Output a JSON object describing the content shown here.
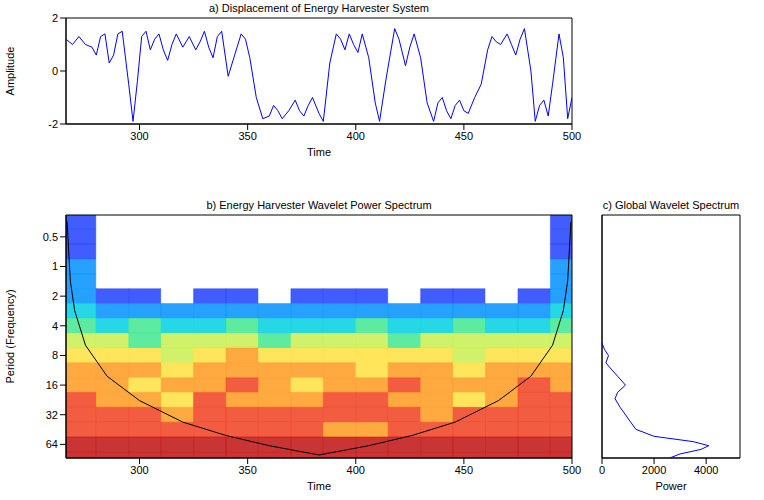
{
  "chart_data": [
    {
      "type": "line",
      "title": "a) Displacement of Energy Harvester System",
      "x_label": "Time",
      "y_label": "Amplitude",
      "x": [
        266,
        269,
        272,
        275,
        278,
        280,
        282,
        284,
        286,
        288,
        290,
        292,
        295,
        297,
        299,
        301,
        303,
        305,
        307,
        309,
        311,
        313,
        315,
        317,
        320,
        323,
        326,
        328,
        330,
        332,
        334,
        336,
        338,
        341,
        344,
        347,
        349,
        351,
        354,
        357,
        360,
        362,
        364,
        366,
        369,
        372,
        374,
        376,
        378,
        380,
        383,
        385,
        388,
        391,
        393,
        395,
        397,
        399,
        401,
        403,
        406,
        409,
        411,
        414,
        418,
        420,
        423,
        425,
        427,
        430,
        433,
        436,
        438,
        440,
        442,
        444,
        446,
        448,
        450,
        452,
        455,
        458,
        461,
        463,
        465,
        467,
        470,
        472,
        474,
        476,
        478,
        481,
        483,
        485,
        487,
        489,
        491,
        494,
        496,
        498,
        500
      ],
      "values": [
        1.2,
        1.0,
        1.3,
        1.0,
        0.9,
        0.6,
        1.3,
        1.4,
        0.3,
        0.6,
        1.4,
        1.5,
        -0.5,
        -1.9,
        -0.4,
        1.3,
        1.5,
        0.8,
        1.2,
        1.4,
        0.8,
        0.4,
        1.0,
        1.4,
        0.9,
        1.3,
        0.8,
        1.1,
        1.5,
        0.9,
        0.5,
        1.3,
        1.5,
        -0.2,
        0.6,
        1.4,
        1.2,
        0.5,
        -1.0,
        -1.8,
        -1.7,
        -1.3,
        -1.5,
        -1.8,
        -1.5,
        -1.1,
        -1.5,
        -1.7,
        -1.3,
        -1.0,
        -1.6,
        -1.9,
        0.3,
        1.4,
        1.2,
        0.8,
        1.4,
        1.0,
        0.7,
        1.4,
        0.5,
        -1.2,
        -1.9,
        -0.3,
        1.6,
        1.2,
        0.2,
        0.9,
        1.4,
        0.5,
        -1.2,
        -1.9,
        -1.2,
        -1.0,
        -1.5,
        -1.8,
        -1.3,
        -1.1,
        -1.5,
        -1.6,
        -1.0,
        -0.5,
        0.8,
        1.3,
        1.1,
        1.0,
        1.4,
        1.0,
        0.6,
        1.2,
        1.6,
        0.0,
        -1.9,
        -1.3,
        -1.1,
        -1.7,
        -0.5,
        1.4,
        0.5,
        -1.8,
        -1.0
      ],
      "color": "#0000ff",
      "xlim": [
        266,
        500
      ],
      "ylim": [
        -2,
        2
      ],
      "xticks": [
        300,
        350,
        400,
        450,
        500
      ],
      "yticks": [
        -2,
        0,
        2
      ]
    },
    {
      "type": "heatmap",
      "title": "b) Energy Harvester Wavelet Power Spectrum",
      "x_label": "Time",
      "y_label": "Period (Frequency)",
      "x_edges": [
        266,
        280,
        295,
        310,
        325,
        340,
        355,
        370,
        385,
        400,
        415,
        430,
        445,
        460,
        475,
        490,
        500
      ],
      "y_edges": [
        0.3,
        0.42,
        0.59,
        0.84,
        1.19,
        1.68,
        2.38,
        3.36,
        4.76,
        6.73,
        9.51,
        13.5,
        19,
        26.9,
        38.1,
        53.8,
        76.1,
        88
      ],
      "cells": [
        [
          1,
          0,
          0,
          0,
          0,
          0,
          0,
          0,
          0,
          0,
          0,
          0,
          0,
          0,
          0,
          1
        ],
        [
          1,
          0,
          0,
          0,
          0,
          0,
          0,
          0,
          0,
          0,
          0,
          0,
          0,
          0,
          0,
          1
        ],
        [
          1,
          0,
          0,
          0,
          0,
          0,
          0,
          0,
          0,
          0,
          0,
          0,
          0,
          0,
          0,
          1
        ],
        [
          2,
          0,
          0,
          0,
          0,
          0,
          0,
          0,
          0,
          0,
          0,
          0,
          0,
          0,
          0,
          2
        ],
        [
          2,
          0,
          0,
          0,
          0,
          0,
          0,
          0,
          0,
          0,
          0,
          0,
          0,
          0,
          0,
          2
        ],
        [
          2,
          1,
          1,
          0,
          1,
          1,
          0,
          1,
          1,
          1,
          0,
          1,
          1,
          0,
          1,
          2
        ],
        [
          3,
          2,
          2,
          2,
          2,
          2,
          2,
          2,
          2,
          2,
          2,
          2,
          2,
          2,
          2,
          3
        ],
        [
          4,
          3,
          4,
          3,
          3,
          4,
          3,
          3,
          3,
          4,
          3,
          3,
          4,
          3,
          3,
          4
        ],
        [
          5,
          5,
          4,
          5,
          5,
          5,
          4,
          5,
          5,
          5,
          4,
          5,
          5,
          5,
          5,
          5
        ],
        [
          6,
          6,
          6,
          5,
          6,
          7,
          6,
          6,
          6,
          6,
          6,
          6,
          5,
          6,
          6,
          6
        ],
        [
          7,
          7,
          7,
          6,
          7,
          7,
          7,
          7,
          7,
          6,
          7,
          7,
          6,
          7,
          7,
          7
        ],
        [
          7,
          7,
          6,
          7,
          7,
          8,
          7,
          6,
          7,
          7,
          8,
          7,
          7,
          7,
          8,
          7
        ],
        [
          8,
          7,
          7,
          6,
          8,
          7,
          7,
          7,
          8,
          8,
          7,
          7,
          6,
          7,
          8,
          8
        ],
        [
          8,
          8,
          8,
          7,
          8,
          8,
          8,
          8,
          8,
          8,
          8,
          7,
          8,
          8,
          8,
          8
        ],
        [
          8,
          8,
          8,
          8,
          8,
          8,
          8,
          8,
          7,
          7,
          8,
          8,
          8,
          8,
          8,
          8
        ],
        [
          9,
          9,
          9,
          9,
          9,
          9,
          9,
          9,
          9,
          9,
          9,
          9,
          9,
          9,
          9,
          9
        ],
        [
          9,
          9,
          9,
          9,
          9,
          9,
          9,
          9,
          9,
          9,
          9,
          9,
          9,
          9,
          9,
          9
        ]
      ],
      "cone_of_influence": {
        "x": [
          266.5,
          268,
          270,
          275,
          285,
          300,
          320,
          340,
          360,
          383,
          406,
          426,
          446,
          466,
          481,
          491,
          496,
          498,
          499.5
        ],
        "values": [
          0.35,
          1.4,
          2.8,
          6.3,
          13,
          23,
          38,
          52,
          66,
          82,
          66,
          52,
          38,
          23,
          13,
          6.3,
          2.8,
          1.4,
          0.35
        ],
        "color": "#000000"
      },
      "log": "y",
      "xlim": [
        266,
        500
      ],
      "ylim": [
        88,
        0.3
      ],
      "xticks": [
        300,
        350,
        400,
        450,
        500
      ],
      "yticks": [
        0.5,
        1,
        2,
        4,
        8,
        16,
        32,
        64
      ]
    },
    {
      "type": "line",
      "title": "c) Global Wavelet Spectrum",
      "x_label": "Power",
      "x": [
        0,
        100,
        250,
        150,
        350,
        600,
        900,
        600,
        500,
        700,
        900,
        1100,
        1300,
        2000,
        3500,
        4100,
        3800,
        3000,
        2600
      ],
      "values": [
        6,
        7,
        8,
        9.5,
        11,
        13,
        16,
        19,
        22,
        27,
        32,
        38,
        45,
        53,
        60,
        66,
        72,
        80,
        88
      ],
      "color": "#0000ff",
      "log": "y",
      "tick_labels": "x",
      "xlim": [
        0,
        5300
      ],
      "ylim": [
        88,
        0.3
      ],
      "xticks": [
        0,
        2000,
        4000
      ]
    }
  ]
}
